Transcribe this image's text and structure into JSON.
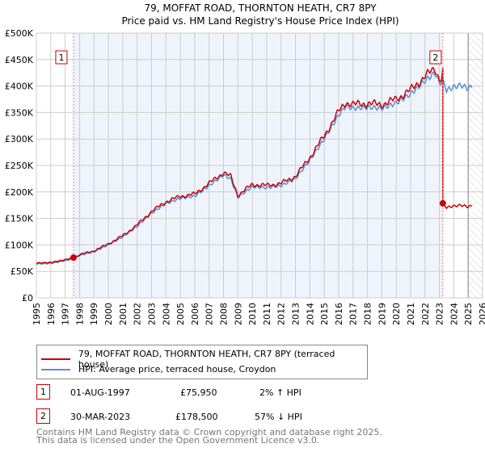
{
  "chart_data": {
    "type": "line",
    "title": "79, MOFFAT ROAD, THORNTON HEATH, CR7 8PY",
    "subtitle": "Price paid vs. HM Land Registry's House Price Index (HPI)",
    "xlim": [
      1995,
      2026
    ],
    "ylim": [
      0,
      500000
    ],
    "x_ticks": [
      "1995",
      "1996",
      "1997",
      "1998",
      "1999",
      "2000",
      "2001",
      "2002",
      "2003",
      "2004",
      "2005",
      "2006",
      "2007",
      "2008",
      "2009",
      "2010",
      "2011",
      "2012",
      "2013",
      "2014",
      "2015",
      "2016",
      "2017",
      "2018",
      "2019",
      "2020",
      "2021",
      "2022",
      "2023",
      "2024",
      "2025",
      "2026"
    ],
    "y_ticks": [
      "£0",
      "£50K",
      "£100K",
      "£150K",
      "£200K",
      "£250K",
      "£300K",
      "£350K",
      "£400K",
      "£450K",
      "£500K"
    ],
    "hpi_series": {
      "name": "HPI: Average price, terraced house, Croydon",
      "color": "#5b8ed0",
      "x": [
        1995,
        1996,
        1997,
        1997.6,
        1998,
        1999,
        2000,
        2001,
        2002,
        2003,
        2004,
        2005,
        2006,
        2007,
        2008,
        2008.5,
        2009,
        2010,
        2011,
        2012,
        2013,
        2014,
        2015,
        2016,
        2016.5,
        2017,
        2018,
        2019,
        2020,
        2021,
        2022,
        2022.7,
        2023,
        2023.24,
        2023.5,
        2024,
        2024.5,
        2025,
        2025.3
      ],
      "y": [
        64000,
        65000,
        70000,
        74000,
        80000,
        87000,
        100000,
        115000,
        135000,
        160000,
        178000,
        188000,
        192000,
        212000,
        232000,
        225000,
        190000,
        210000,
        208000,
        212000,
        225000,
        260000,
        300000,
        345000,
        362000,
        358000,
        360000,
        358000,
        368000,
        385000,
        410000,
        425000,
        405000,
        410000,
        392000,
        398000,
        402000,
        395000,
        400000
      ]
    },
    "price_series": {
      "name": "79, MOFFAT ROAD, THORNTON HEATH, CR7 8PY (terraced house)",
      "color": "#cc0000"
    },
    "sales": [
      {
        "id": "1",
        "x": 1997.58,
        "price": 75950
      },
      {
        "id": "2",
        "x": 2023.24,
        "price": 178500
      }
    ],
    "shaded_range": [
      1997.58,
      2023.24
    ],
    "hatched_from": 2025.0
  },
  "legend": {
    "price": "79, MOFFAT ROAD, THORNTON HEATH, CR7 8PY (terraced house)",
    "hpi": "HPI: Average price, terraced house, Croydon"
  },
  "transactions": [
    {
      "id": "1",
      "date": "01-AUG-1997",
      "price": "£75,950",
      "delta": "2% ↑ HPI"
    },
    {
      "id": "2",
      "date": "30-MAR-2023",
      "price": "£178,500",
      "delta": "57% ↓ HPI"
    }
  ],
  "footer": {
    "line1": "Contains HM Land Registry data © Crown copyright and database right 2025.",
    "line2": "This data is licensed under the Open Government Licence v3.0."
  }
}
